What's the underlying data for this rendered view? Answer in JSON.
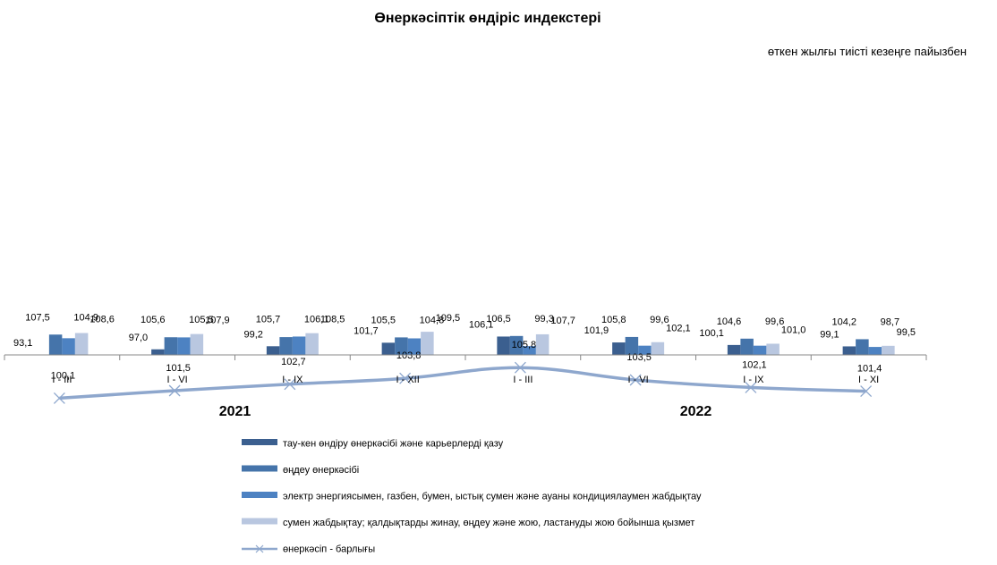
{
  "chart_data": {
    "type": "bar",
    "title": "Өнеркәсіптік өндіріс индекстері",
    "subtitle": "өткен жылғы тиісті кезеңге пайызбен",
    "categories": [
      "I - III",
      "I - VI",
      "I - IX",
      "I - XII",
      "I - III",
      "I - VI",
      "I - IX",
      "I - XI"
    ],
    "groups": [
      {
        "label": "2021",
        "start": 0,
        "end": 3
      },
      {
        "label": "2022",
        "start": 4,
        "end": 7
      }
    ],
    "series": [
      {
        "name": "тау-кен өндіру өнеркәсібі және карьерлерді қазу",
        "type": "bar",
        "color": "#3b5f8f",
        "values": [
          93.1,
          97.0,
          99.2,
          101.7,
          106.1,
          101.9,
          100.1,
          99.1
        ],
        "labels": [
          "93,1",
          "97,0",
          "99,2",
          "101,7",
          "106,1",
          "101,9",
          "100,1",
          "99,1"
        ]
      },
      {
        "name": "өңдеу өнеркәсібі",
        "type": "bar",
        "color": "#4574aa",
        "values": [
          107.5,
          105.6,
          105.7,
          105.5,
          106.5,
          105.8,
          104.6,
          104.2
        ],
        "labels": [
          "107,5",
          "105,6",
          "105,7",
          "105,5",
          "106,5",
          "105,8",
          "104,6",
          "104,2"
        ]
      },
      {
        "name": "электр энергиясымен, газбен, бумен, ыстық сумен және ауаны кондициялаумен жабдықтау",
        "type": "bar",
        "color": "#4d82c2",
        "values": [
          104.9,
          105.5,
          106.1,
          104.8,
          99.3,
          99.6,
          99.6,
          98.7
        ],
        "labels": [
          "104,9",
          "105,5",
          "106,1",
          "104,8",
          "99,3",
          "99,6",
          "99,6",
          "98,7"
        ]
      },
      {
        "name": "сумен жабдықтау; қалдықтарды жинау, өңдеу және жою, ластануды жою бойынша қызмет",
        "type": "bar",
        "color": "#b9c7e0",
        "values": [
          108.6,
          107.9,
          108.5,
          109.5,
          107.7,
          102.1,
          101.0,
          99.5
        ],
        "labels": [
          "108,6",
          "107,9",
          "108,5",
          "109,5",
          "107,7",
          "102,1",
          "101,0",
          "99,5"
        ]
      },
      {
        "name": "өнеркәсіп - барлығы",
        "type": "line",
        "color": "#8ea7cd",
        "values": [
          100.1,
          101.5,
          102.7,
          103.8,
          105.8,
          103.5,
          102.1,
          101.4
        ],
        "labels": [
          "100,1",
          "101,5",
          "102,7",
          "103,8",
          "105,8",
          "103,5",
          "102,1",
          "101,4"
        ]
      }
    ],
    "legend_position": "bottom",
    "grid": false
  }
}
